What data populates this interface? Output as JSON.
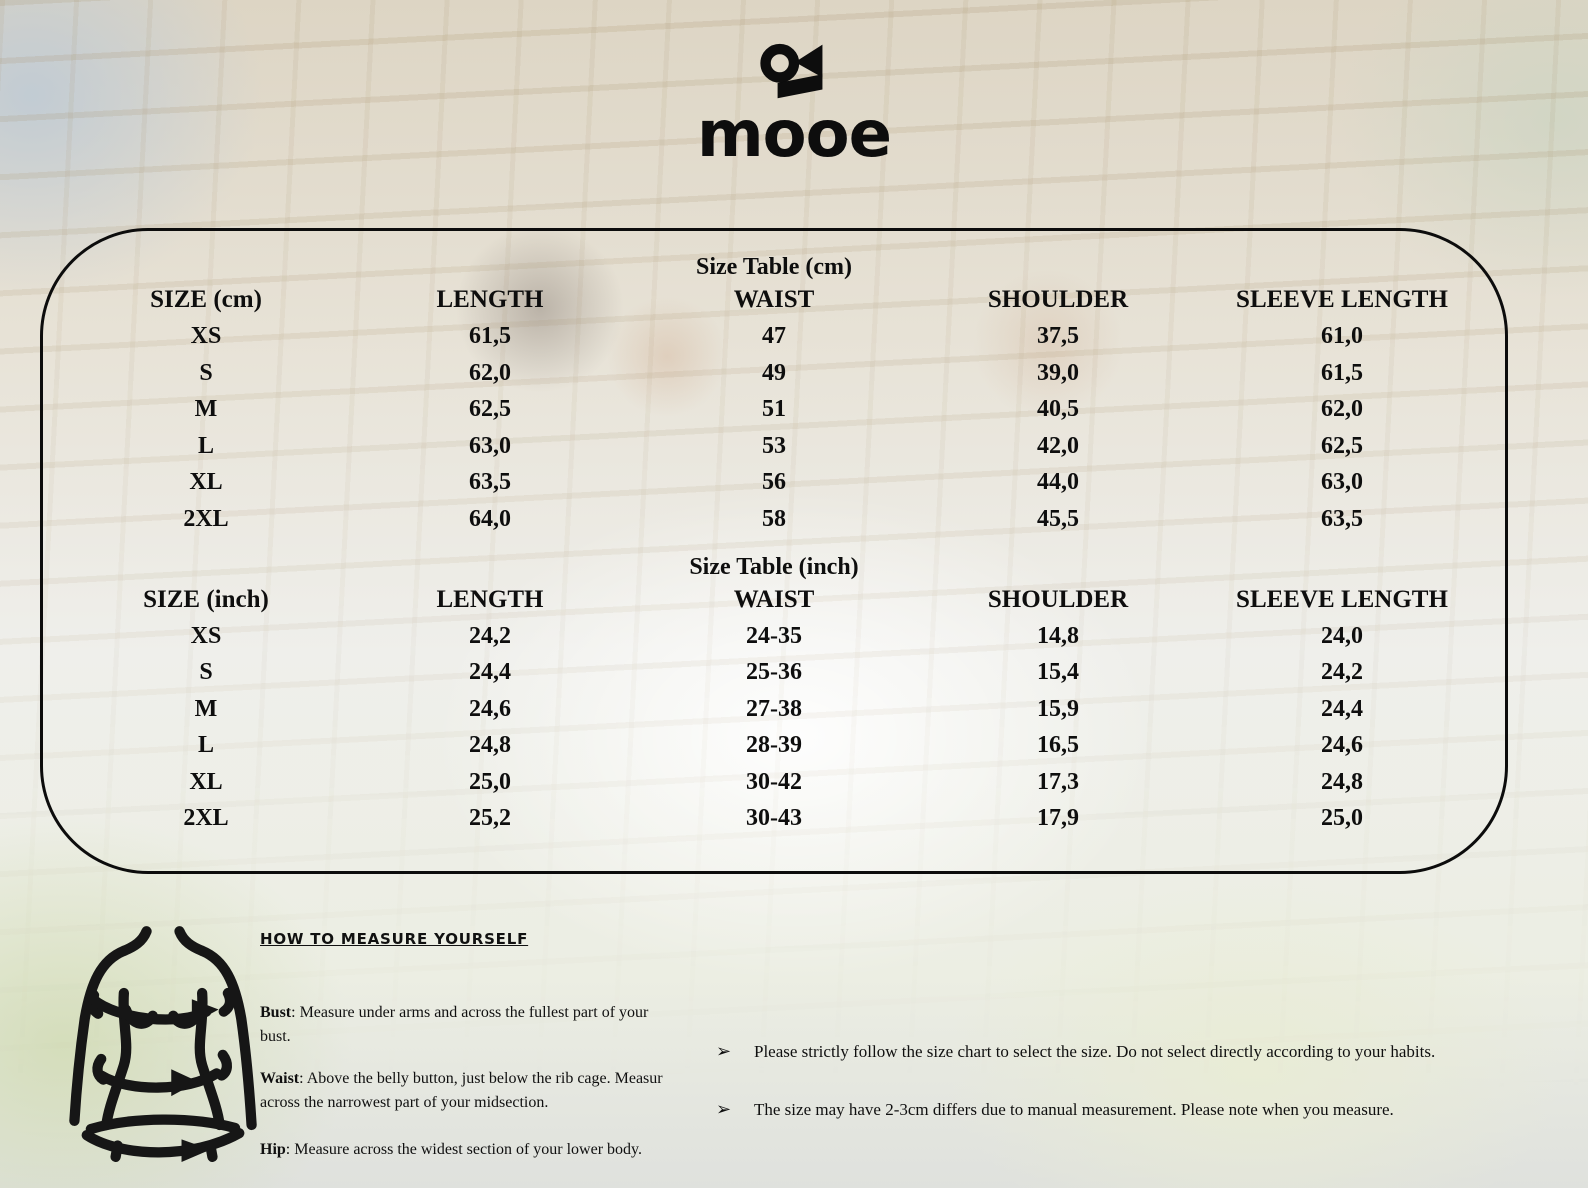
{
  "logo": {
    "brand": "mooe"
  },
  "size_chart": {
    "cm": {
      "title": "Size Table (cm)",
      "columns": [
        "SIZE (cm)",
        "LENGTH",
        "WAIST",
        "SHOULDER",
        "SLEEVE LENGTH"
      ],
      "rows": [
        [
          "XS",
          "61,5",
          "47",
          "37,5",
          "61,0"
        ],
        [
          "S",
          "62,0",
          "49",
          "39,0",
          "61,5"
        ],
        [
          "M",
          "62,5",
          "51",
          "40,5",
          "62,0"
        ],
        [
          "L",
          "63,0",
          "53",
          "42,0",
          "62,5"
        ],
        [
          "XL",
          "63,5",
          "56",
          "44,0",
          "63,0"
        ],
        [
          "2XL",
          "64,0",
          "58",
          "45,5",
          "63,5"
        ]
      ]
    },
    "inch": {
      "title": "Size Table (inch)",
      "columns": [
        "SIZE (inch)",
        "LENGTH",
        "WAIST",
        "SHOULDER",
        "SLEEVE LENGTH"
      ],
      "rows": [
        [
          "XS",
          "24,2",
          "24-35",
          "14,8",
          "24,0"
        ],
        [
          "S",
          "24,4",
          "25-36",
          "15,4",
          "24,2"
        ],
        [
          "M",
          "24,6",
          "27-38",
          "15,9",
          "24,4"
        ],
        [
          "L",
          "24,8",
          "28-39",
          "16,5",
          "24,6"
        ],
        [
          "XL",
          "25,0",
          "30-42",
          "17,3",
          "24,8"
        ],
        [
          "2XL",
          "25,2",
          "30-43",
          "17,9",
          "25,0"
        ]
      ]
    }
  },
  "measure_guide": {
    "heading": "HOW TO MEASURE YOURSELF",
    "items": [
      {
        "label": "Bust",
        "line1": ": Measure under arms and across the fullest part of your",
        "line2": "bust."
      },
      {
        "label": "Waist",
        "line1": ": Above the belly button, just below the rib cage. Measur",
        "line2": "across the narrowest part of your midsection."
      },
      {
        "label": "Hip",
        "line1": ": Measure across the widest section of your lower body.",
        "line2": ""
      }
    ]
  },
  "notes": {
    "bullet_glyph": "➢",
    "items": [
      "Please strictly follow the size chart to select the size. Do not select directly according to your habits.",
      "The size may have 2-3cm differs due to manual measurement. Please note when you measure."
    ]
  }
}
